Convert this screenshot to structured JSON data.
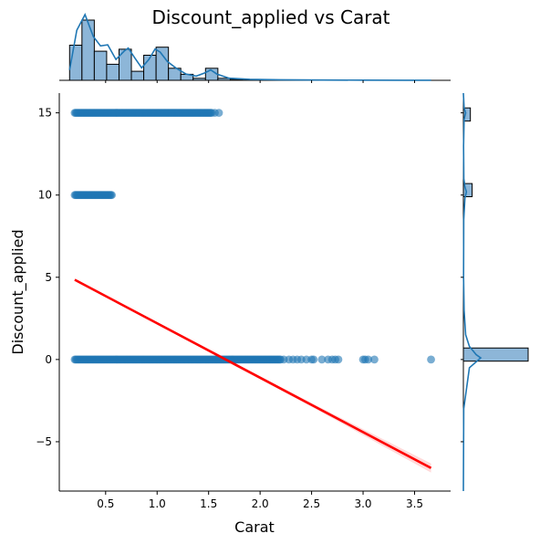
{
  "chart_data": {
    "type": "scatter",
    "title": "Discount_applied vs Carat",
    "xlabel": "Carat",
    "ylabel": "Discount_applied",
    "xlim": [
      0.05,
      3.85
    ],
    "ylim": [
      -8.0,
      16.2
    ],
    "x_ticks": [
      0.5,
      1.0,
      1.5,
      2.0,
      2.5,
      3.0,
      3.5
    ],
    "x_tick_labels": [
      "0.5",
      "1.0",
      "1.5",
      "2.0",
      "2.5",
      "3.0",
      "3.5"
    ],
    "y_ticks": [
      -5,
      0,
      5,
      10,
      15
    ],
    "y_tick_labels": [
      "−5",
      "0",
      "5",
      "10",
      "15"
    ],
    "grid": false,
    "point_color": "#1f77b4",
    "regression_color": "#ff0000",
    "series": [
      {
        "x_ranges": [
          [
            0.2,
            1.53
          ]
        ],
        "x": [
          1.56,
          1.6
        ],
        "y": 15
      },
      {
        "x_ranges": [
          [
            0.2,
            0.56
          ]
        ],
        "x": [],
        "y": 10
      },
      {
        "x_ranges": [
          [
            0.2,
            2.2
          ]
        ],
        "x": [
          2.23,
          2.28,
          2.32,
          2.36,
          2.4,
          2.45,
          2.5,
          2.52,
          2.6,
          2.66,
          2.7,
          2.73,
          2.76,
          3.0,
          3.02,
          3.05,
          3.11,
          3.66
        ],
        "y": 0
      }
    ],
    "regression": {
      "x": [
        0.2,
        3.66
      ],
      "y": [
        4.85,
        -6.6
      ]
    },
    "marginal_x": {
      "bin_edges": [
        0.15,
        0.27,
        0.39,
        0.51,
        0.63,
        0.75,
        0.87,
        0.99,
        1.11,
        1.23,
        1.35,
        1.47,
        1.59,
        1.71,
        1.83
      ],
      "counts": [
        35,
        60,
        29,
        16,
        31,
        9,
        25,
        33,
        12,
        6,
        2,
        12,
        2,
        1
      ],
      "tail_counts": [
        0.4,
        0.3,
        0.2,
        0.2,
        0.1,
        0.1,
        0.05
      ],
      "kde_x": [
        0.15,
        0.22,
        0.3,
        0.38,
        0.45,
        0.52,
        0.6,
        0.68,
        0.72,
        0.78,
        0.85,
        0.92,
        0.98,
        1.03,
        1.1,
        1.18,
        1.28,
        1.38,
        1.46,
        1.52,
        1.58,
        1.7,
        1.9,
        2.2,
        2.6,
        3.0,
        3.4,
        3.66
      ],
      "kde_y": [
        10,
        48,
        63,
        42,
        33,
        34,
        20,
        28,
        31,
        22,
        12,
        20,
        30,
        27,
        18,
        12,
        6,
        4,
        7,
        10,
        6,
        2,
        1,
        0.5,
        0.3,
        0.2,
        0.1,
        0.05
      ]
    },
    "marginal_y": {
      "bars": [
        {
          "y_low": 14.5,
          "y_high": 15.3,
          "count": 8
        },
        {
          "y_low": 9.9,
          "y_high": 10.7,
          "count": 10
        },
        {
          "y_low": -0.1,
          "y_high": 0.7,
          "count": 74
        }
      ],
      "kde_y": [
        16.2,
        15.3,
        15.0,
        14.6,
        13.0,
        11.0,
        10.5,
        10.2,
        9.8,
        8.5,
        5.0,
        3.0,
        1.5,
        0.8,
        0.3,
        0.1,
        -0.5,
        -3,
        -8
      ],
      "kde_x": [
        0,
        1,
        3,
        1,
        0.3,
        0.6,
        2,
        4,
        2,
        0.5,
        0.3,
        1,
        3,
        8,
        17,
        23,
        8,
        0.5,
        0
      ]
    }
  }
}
